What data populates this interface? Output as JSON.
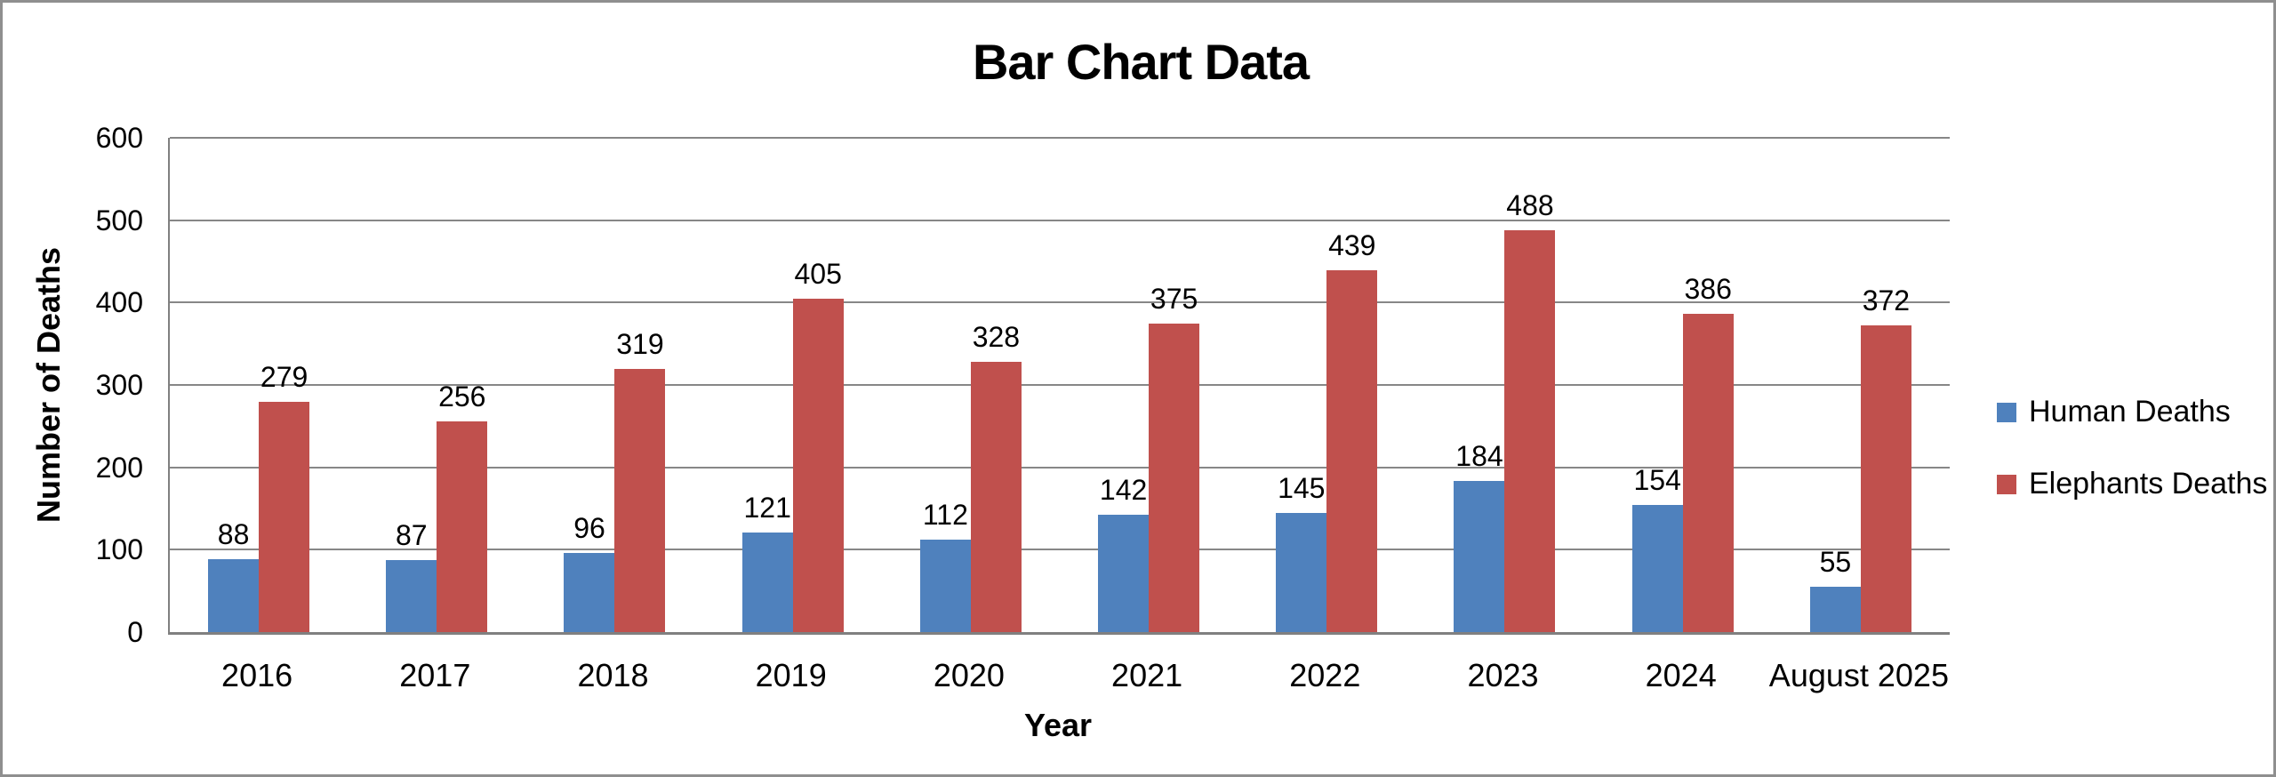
{
  "chart_data": {
    "type": "bar",
    "title": "Bar Chart Data",
    "xlabel": "Year",
    "ylabel": "Number of Deaths",
    "categories": [
      "2016",
      "2017",
      "2018",
      "2019",
      "2020",
      "2021",
      "2022",
      "2023",
      "2024",
      "August 2025"
    ],
    "series": [
      {
        "name": "Human Deaths",
        "color": "#4F81BD",
        "values": [
          88,
          87,
          96,
          121,
          112,
          142,
          145,
          184,
          154,
          55
        ]
      },
      {
        "name": "Elephants Deaths",
        "color": "#C0504D",
        "values": [
          279,
          256,
          319,
          405,
          328,
          375,
          439,
          488,
          386,
          372
        ]
      }
    ],
    "ylim": [
      0,
      600
    ],
    "yticks": [
      0,
      100,
      200,
      300,
      400,
      500,
      600
    ],
    "grid": true,
    "data_labels": true,
    "legend_position": "right"
  },
  "colors": {
    "grid": "#878787",
    "axis": "#808080",
    "text": "#000000",
    "frame": "#8f8f8f",
    "background": "#ffffff"
  }
}
